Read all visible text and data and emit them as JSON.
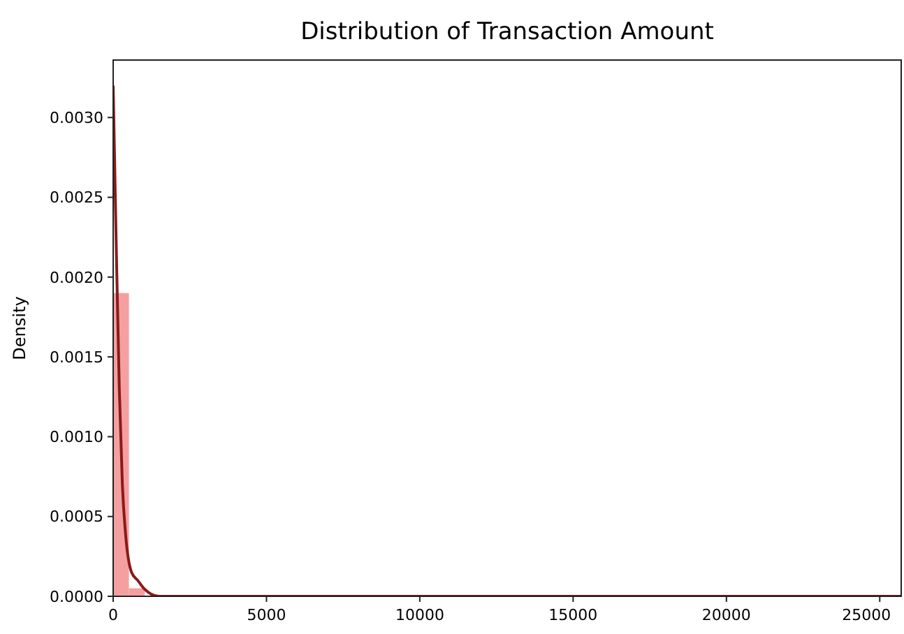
{
  "chart_data": {
    "type": "histogram",
    "title": "Distribution of Transaction Amount",
    "ylabel": "Density",
    "xlim": [
      0,
      25700
    ],
    "xticks": [
      0,
      5000,
      10000,
      15000,
      20000,
      25000
    ],
    "ylim": [
      0,
      0.00336
    ],
    "yticks": [
      {
        "value": 0,
        "label": "0.0000"
      },
      {
        "value": 0.0005,
        "label": "0.0005"
      },
      {
        "value": 0.001,
        "label": "0.0010"
      },
      {
        "value": 0.0015,
        "label": "0.0015"
      },
      {
        "value": 0.002,
        "label": "0.0020"
      },
      {
        "value": 0.0025,
        "label": "0.0025"
      },
      {
        "value": 0.003,
        "label": "0.0030"
      }
    ],
    "series": [
      {
        "color": "#f08080",
        "bins": [
          0,
          514,
          1028,
          1542,
          2056,
          2570,
          3084,
          3598,
          4112,
          4626,
          5140,
          5654,
          6168,
          6682,
          7196,
          7710,
          8224,
          8738,
          9252,
          9766,
          10280,
          10794,
          11308,
          11822,
          12336,
          12850,
          13364,
          13878,
          14392,
          14906,
          15420,
          15934,
          16448,
          16962,
          17476,
          17990,
          18504,
          19018,
          19532,
          20046,
          20560,
          21074,
          21588,
          22102,
          22616,
          23130,
          23644,
          24158,
          24672,
          25186,
          25700
        ],
        "values": [
          0.0019,
          5e-05,
          0,
          0,
          0,
          0,
          0,
          0,
          0,
          0,
          0,
          0,
          0,
          0,
          0,
          0,
          0,
          0,
          0,
          0,
          0,
          0,
          0,
          0,
          0,
          0,
          0,
          0,
          0,
          0,
          0,
          0,
          0,
          0,
          0,
          0,
          0,
          0,
          0,
          0,
          0,
          0,
          0,
          0,
          0,
          0,
          0,
          0,
          0,
          0
        ]
      },
      {
        "type": "line",
        "color": "#8b1a1a",
        "x": [
          0,
          100,
          200,
          300,
          400,
          600,
          800,
          1000,
          1500,
          2000,
          3000,
          25700
        ],
        "values": [
          0.0032,
          0.0022,
          0.0013,
          0.0007,
          0.0004,
          0.00015,
          0.0001,
          5e-05,
          0,
          0,
          0,
          0
        ]
      }
    ]
  }
}
